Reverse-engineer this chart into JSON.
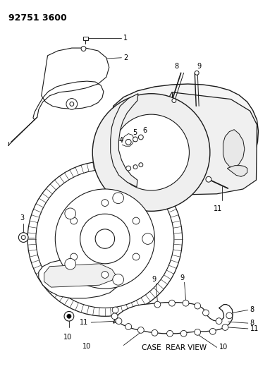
{
  "title": "92751 3600",
  "background_color": "#ffffff",
  "line_color": "#1a1a1a",
  "caption": "CASE  REAR VIEW",
  "fig_w": 3.83,
  "fig_h": 5.33,
  "dpi": 100
}
